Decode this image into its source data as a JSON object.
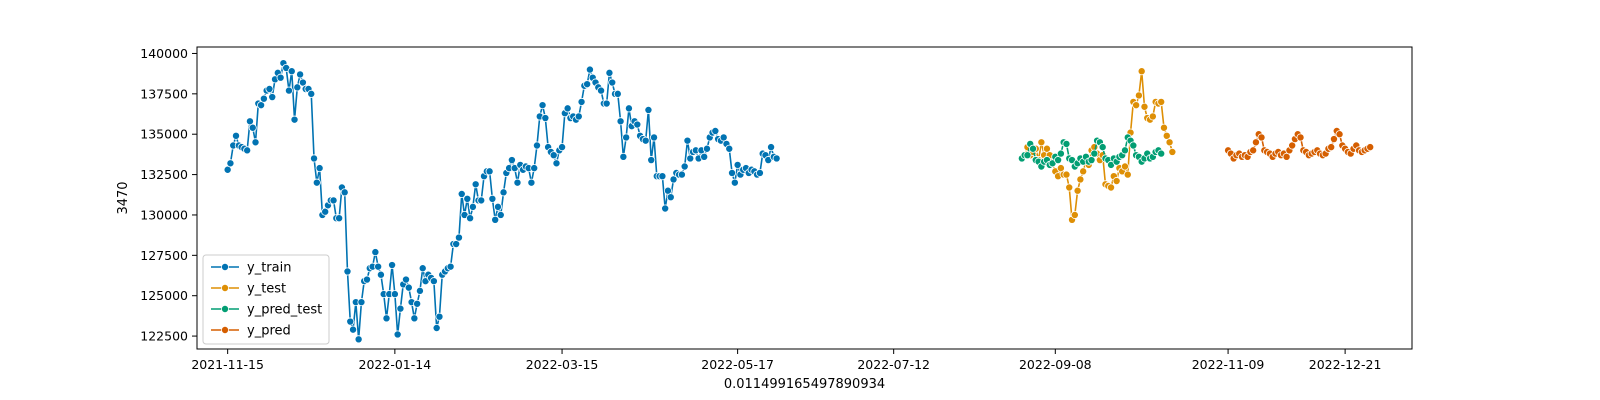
{
  "chart_data": {
    "type": "line",
    "title": "",
    "xlabel": "0.011499165497890934",
    "ylabel": "3470",
    "x_type": "date",
    "xlim": [
      "2021-11-04",
      "2023-01-14"
    ],
    "ylim": [
      121700,
      140400
    ],
    "y_ticks": [
      122500,
      125000,
      127500,
      130000,
      132500,
      135000,
      137500,
      140000
    ],
    "y_tick_labels": [
      "122500",
      "125000",
      "127500",
      "130000",
      "132500",
      "135000",
      "137500",
      "140000"
    ],
    "x_ticks": [
      "2021-11-15",
      "2022-01-14",
      "2022-03-15",
      "2022-05-17",
      "2022-07-12",
      "2022-09-08",
      "2022-11-09",
      "2022-12-21"
    ],
    "x_tick_labels": [
      "2021-11-15",
      "2022-01-14",
      "2022-03-15",
      "2022-05-17",
      "2022-07-12",
      "2022-09-08",
      "2022-11-09",
      "2022-12-21"
    ],
    "grid": false,
    "legend_position": "bottom-left",
    "series": [
      {
        "name": "y_train",
        "color": "#0173b2",
        "start_date": "2021-11-15",
        "values": [
          132800,
          133200,
          134300,
          134900,
          134300,
          134200,
          134100,
          134000,
          135800,
          135400,
          134500,
          136900,
          136800,
          137200,
          137700,
          137800,
          137300,
          138400,
          138800,
          138500,
          139400,
          139100,
          137700,
          138900,
          135900,
          137900,
          138700,
          138200,
          137800,
          137800,
          137500,
          133500,
          132000,
          132900,
          130000,
          130200,
          130600,
          130900,
          130900,
          129800,
          129800,
          131700,
          131400,
          126500,
          123400,
          122900,
          124600,
          122300,
          124600,
          125900,
          126000,
          126700,
          126800,
          127700,
          126800,
          126300,
          125100,
          123600,
          125100,
          126900,
          125100,
          122600,
          124200,
          125700,
          126000,
          125500,
          124600,
          123600,
          124500,
          125300,
          126700,
          125900,
          126300,
          126100,
          125900,
          123000,
          123700,
          126300,
          126500,
          126700,
          126800,
          128200,
          128200,
          128600,
          131300,
          130000,
          131000,
          129800,
          130500,
          131900,
          130900,
          130900,
          132400,
          132700,
          132700,
          131000,
          129700,
          130500,
          130000,
          131400,
          132600,
          132900,
          133400,
          132900,
          132000,
          133100,
          132800,
          133000,
          132900,
          132000,
          132900,
          134300,
          136100,
          136800,
          136000,
          134200,
          133900,
          133700,
          133200,
          134000,
          134200,
          136300,
          136600,
          136000,
          136100,
          135900,
          136100,
          137000,
          138000,
          138100,
          139000,
          138500,
          138200,
          137900,
          137700,
          136900,
          136900,
          138800,
          138200,
          137500,
          137500,
          135800,
          133600,
          134800,
          136600,
          135500,
          135800,
          135600,
          134900,
          134700,
          134600,
          136500,
          133400,
          134800,
          132400,
          132400,
          132400,
          130400,
          131500,
          131100,
          132200,
          132600,
          132500,
          132500,
          133000,
          134600,
          133500,
          133900,
          134000,
          133500,
          134000,
          133600,
          134100,
          134800,
          135100,
          135200,
          134700,
          134600,
          134800,
          134400,
          134100,
          132600,
          132000,
          133100,
          132500,
          132800,
          132900,
          132600,
          132800,
          132700,
          132500,
          132600,
          133800,
          133700,
          133400,
          134200,
          133600,
          133500
        ]
      },
      {
        "name": "y_test",
        "color": "#de8f05",
        "start_date": "2022-08-27",
        "values": [
          133500,
          133700,
          134200,
          133700,
          133900,
          134100,
          133400,
          134500,
          133700,
          134100,
          133700,
          133200,
          132700,
          132400,
          132900,
          132500,
          132500,
          131700,
          129700,
          130000,
          131500,
          132200,
          132700,
          133300,
          133100,
          134000,
          134200,
          133800,
          133400,
          133700,
          131900,
          131800,
          131700,
          132400,
          132100,
          132900,
          132700,
          133000,
          132500,
          135100,
          137000,
          136800,
          137400,
          138900,
          136700,
          136000,
          135900,
          136100,
          137000,
          136900,
          137000,
          135400,
          134900,
          134500,
          133900
        ]
      },
      {
        "name": "y_pred_test",
        "color": "#029e73",
        "start_date": "2022-08-27",
        "values": [
          133500,
          133700,
          133700,
          134400,
          134100,
          133400,
          133300,
          133000,
          133300,
          133400,
          133100,
          133200,
          133600,
          133400,
          133800,
          134500,
          134400,
          133500,
          133400,
          133000,
          133200,
          133500,
          133300,
          133600,
          133300,
          133400,
          133800,
          134600,
          134500,
          134200,
          133500,
          133400,
          133100,
          133500,
          133300,
          133600,
          133700,
          134000,
          134800,
          134600,
          134300,
          133700,
          133600,
          133300,
          133500,
          133800,
          133500,
          133600,
          133900,
          134000,
          133800
        ]
      },
      {
        "name": "y_pred",
        "color": "#d55e00",
        "start_date": "2022-11-09",
        "values": [
          134000,
          133800,
          133500,
          133700,
          133800,
          133600,
          133700,
          133600,
          133900,
          134000,
          134500,
          135000,
          134800,
          134000,
          133900,
          133800,
          133600,
          133800,
          133900,
          133700,
          133800,
          133600,
          134000,
          134300,
          134700,
          135000,
          134800,
          134000,
          133900,
          133700,
          133800,
          133900,
          134000,
          133800,
          133700,
          133800,
          134100,
          134200,
          134700,
          135200,
          135000,
          134300,
          134100,
          133900,
          133800,
          134100,
          134300,
          134000,
          133900,
          134000,
          134100,
          134200
        ]
      }
    ]
  }
}
